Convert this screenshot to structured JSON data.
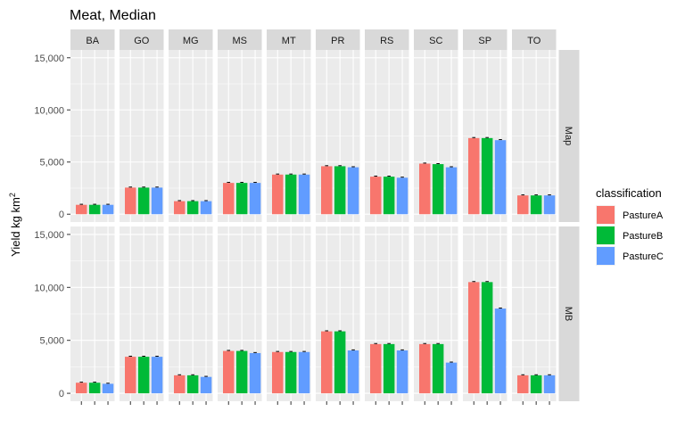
{
  "chart_data": {
    "type": "bar",
    "title": "Meat, Median",
    "ylabel": "Yield kg km",
    "ylabel_superscript": "2",
    "xlabel": "",
    "ylim": [
      0,
      15000
    ],
    "y_ticks": [
      0,
      5000,
      10000,
      15000
    ],
    "y_tick_labels": [
      "0",
      "5,000",
      "10,000",
      "15,000"
    ],
    "grid": true,
    "facet_columns": [
      "BA",
      "GO",
      "MG",
      "MS",
      "MT",
      "PR",
      "RS",
      "SC",
      "SP",
      "TO"
    ],
    "facet_rows": [
      "Map",
      "MB"
    ],
    "legend": {
      "title": "classification",
      "placement": "right",
      "entries": [
        "PastureA",
        "PastureB",
        "PastureC"
      ]
    },
    "colors": {
      "PastureA": "#F8766D",
      "PastureB": "#00BA38",
      "PastureC": "#619CFF"
    },
    "panels": [
      {
        "row": "Map",
        "series": [
          {
            "name": "PastureA",
            "values": [
              900,
              2550,
              1250,
              3000,
              3800,
              4600,
              3600,
              4850,
              7300,
              1800
            ]
          },
          {
            "name": "PastureB",
            "values": [
              900,
              2550,
              1250,
              3000,
              3800,
              4600,
              3600,
              4800,
              7300,
              1800
            ]
          },
          {
            "name": "PastureC",
            "values": [
              900,
              2550,
              1250,
              3000,
              3800,
              4500,
              3500,
              4500,
              7100,
              1800
            ]
          }
        ]
      },
      {
        "row": "MB",
        "series": [
          {
            "name": "PastureA",
            "values": [
              1000,
              3450,
              1700,
              4000,
              3900,
              5850,
              4650,
              4650,
              10500,
              1700
            ]
          },
          {
            "name": "PastureB",
            "values": [
              1000,
              3450,
              1700,
              4000,
              3900,
              5850,
              4650,
              4650,
              10500,
              1700
            ]
          },
          {
            "name": "PastureC",
            "values": [
              900,
              3450,
              1550,
              3800,
              3900,
              4050,
              4050,
              2900,
              8000,
              1700
            ]
          }
        ]
      }
    ]
  }
}
